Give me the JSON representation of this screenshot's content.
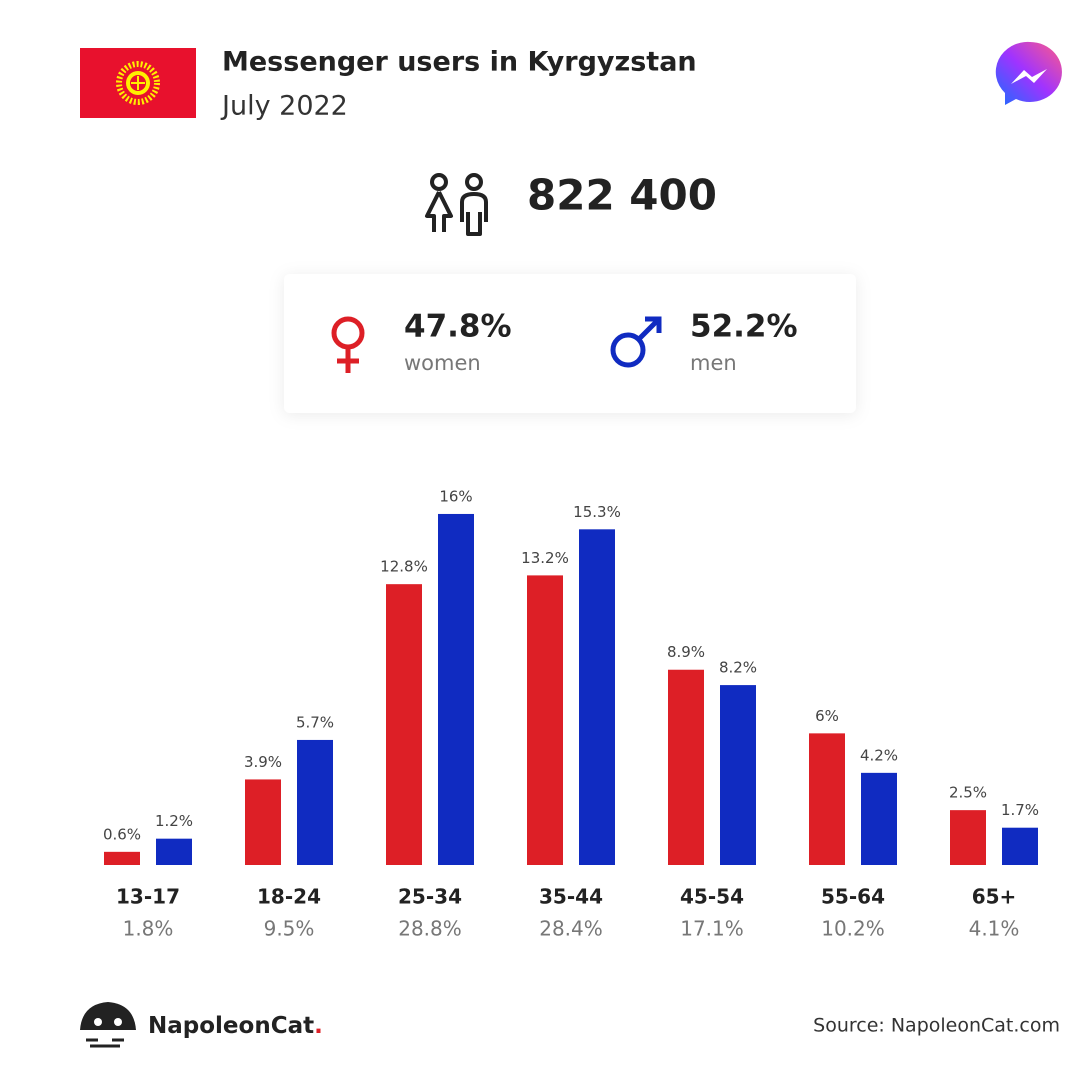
{
  "header": {
    "title": "Messenger users in Kyrgyzstan",
    "subtitle": "July 2022"
  },
  "total_users": {
    "value": 822400,
    "label": "822 400"
  },
  "chart_data": {
    "type": "bar",
    "categories": [
      "13-17",
      "18-24",
      "25-34",
      "35-44",
      "45-54",
      "55-64",
      "65+"
    ],
    "totals": [
      1.8,
      9.5,
      28.8,
      28.4,
      17.1,
      10.2,
      4.1
    ],
    "total_labels": [
      "1.8%",
      "9.5%",
      "28.8%",
      "28.4%",
      "17.1%",
      "10.2%",
      "4.1%"
    ],
    "series": [
      {
        "name": "women",
        "color": "#dd1f26",
        "share": 47.8,
        "share_label": "47.8%",
        "values": [
          0.6,
          3.9,
          12.8,
          13.2,
          8.9,
          6,
          2.5
        ],
        "value_labels": [
          "0.6%",
          "3.9%",
          "12.8%",
          "13.2%",
          "8.9%",
          "6%",
          "2.5%"
        ]
      },
      {
        "name": "men",
        "color": "#102bc1",
        "share": 52.2,
        "share_label": "52.2%",
        "values": [
          1.2,
          5.7,
          16,
          15.3,
          8.2,
          4.2,
          1.7
        ],
        "value_labels": [
          "1.2%",
          "5.7%",
          "16%",
          "15.3%",
          "8.2%",
          "4.2%",
          "1.7%"
        ]
      }
    ]
  },
  "footer": {
    "brand": "NapoleonCat.",
    "source": "Source: NapoleonCat.com"
  }
}
